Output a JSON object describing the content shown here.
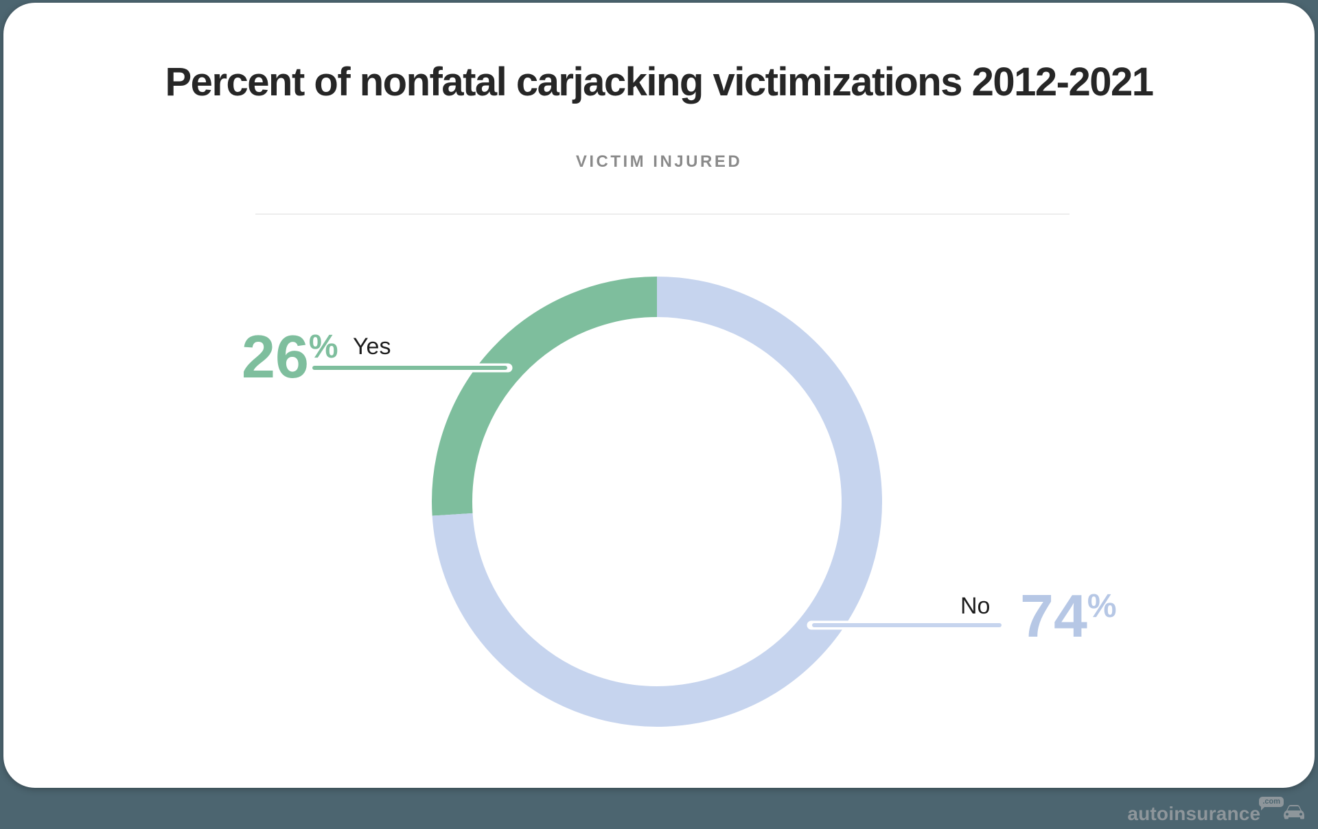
{
  "colors": {
    "background": "#4c6570",
    "card": "#ffffff",
    "title_text": "#262626",
    "subtitle_text": "#8a8a8a",
    "divider": "#ededed",
    "yes_green": "#7ebe9d",
    "no_blue_ring": "#c6d4ee",
    "no_blue_text": "#b6c7e5",
    "slice_label_text": "#1d1d1d",
    "brand_gray": "#8e969b"
  },
  "header": {
    "title": "Percent of nonfatal carjacking victimizations 2012-2021",
    "subtitle": "VICTIM INJURED"
  },
  "chart_data": {
    "type": "pie",
    "variant": "donut",
    "title": "Percent of nonfatal carjacking victimizations 2012-2021",
    "subtitle": "VICTIM INJURED",
    "categories": [
      "Yes",
      "No"
    ],
    "values": [
      26,
      74
    ],
    "unit": "%",
    "colors": [
      "#7ebe9d",
      "#c6d4ee"
    ],
    "start_angle": "top",
    "first_slice_direction": "counterclockwise",
    "legend_position": "callout-labels",
    "grid": false
  },
  "callouts": {
    "yes": {
      "value": "26",
      "unit": "%",
      "label": "Yes"
    },
    "no": {
      "value": "74",
      "unit": "%",
      "label": "No"
    }
  },
  "footer": {
    "brand": "autoinsurance",
    "badge": ".com"
  }
}
